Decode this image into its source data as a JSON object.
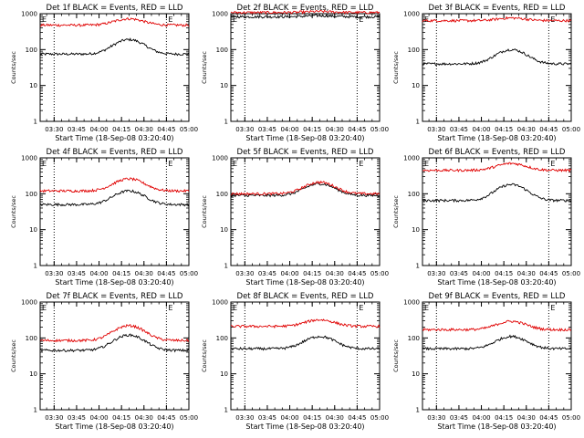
{
  "chart_data": [
    {
      "type": "line",
      "title": "Det 1f BLACK = Events, RED = LLD",
      "xlabel": "Start Time (18-Sep-08 03:20:40)",
      "ylabel": "Counts/sec",
      "y_scale": "log",
      "ylim": [
        1,
        1000
      ],
      "xlim": [
        "03:20:40",
        "05:00:00"
      ],
      "x_ticks": [
        "03:30",
        "03:45",
        "04:00",
        "04:15",
        "04:30",
        "04:45",
        "05:00"
      ],
      "y_ticks": [
        "1",
        "10",
        "100",
        "1000"
      ],
      "vlines": [
        "03:30",
        "04:45"
      ],
      "flags": [
        "E",
        "E"
      ],
      "series": [
        {
          "color": "black",
          "base": 75,
          "peak": 190
        },
        {
          "color": "red",
          "base": 480,
          "peak": 720
        }
      ]
    },
    {
      "type": "line",
      "title": "Det 2f BLACK = Events, RED = LLD",
      "xlabel": "Start Time (18-Sep-08 03:20:40)",
      "ylabel": "Counts/sec",
      "y_scale": "log",
      "ylim": [
        1,
        1000
      ],
      "xlim": [
        "03:20:40",
        "05:00:00"
      ],
      "x_ticks": [
        "03:30",
        "03:45",
        "04:00",
        "04:15",
        "04:30",
        "04:45",
        "05:00"
      ],
      "y_ticks": [
        "1",
        "10",
        "100",
        "1000"
      ],
      "vlines": [
        "03:30",
        "04:45"
      ],
      "flags": [
        "E",
        "E"
      ],
      "series": [
        {
          "color": "black",
          "base": 820,
          "peak": 880
        },
        {
          "color": "red",
          "base": 1080,
          "peak": 1150
        }
      ]
    },
    {
      "type": "line",
      "title": "Det 3f BLACK = Events, RED = LLD",
      "xlabel": "Start Time (18-Sep-08 03:20:40)",
      "ylabel": "Counts/sec",
      "y_scale": "log",
      "ylim": [
        1,
        1000
      ],
      "xlim": [
        "03:20:40",
        "05:00:00"
      ],
      "x_ticks": [
        "03:30",
        "03:45",
        "04:00",
        "04:15",
        "04:30",
        "04:45",
        "05:00"
      ],
      "y_ticks": [
        "1",
        "10",
        "100",
        "1000"
      ],
      "vlines": [
        "03:30",
        "04:45"
      ],
      "flags": [
        "E",
        "E"
      ],
      "series": [
        {
          "color": "black",
          "base": 40,
          "peak": 100
        },
        {
          "color": "red",
          "base": 640,
          "peak": 760
        }
      ]
    },
    {
      "type": "line",
      "title": "Det 4f BLACK = Events, RED = LLD",
      "xlabel": "Start Time (18-Sep-08 03:20:40)",
      "ylabel": "Counts/sec",
      "y_scale": "log",
      "ylim": [
        1,
        1000
      ],
      "xlim": [
        "03:20:40",
        "05:00:00"
      ],
      "x_ticks": [
        "03:30",
        "03:45",
        "04:00",
        "04:15",
        "04:30",
        "04:45",
        "05:00"
      ],
      "y_ticks": [
        "1",
        "10",
        "100",
        "1000"
      ],
      "vlines": [
        "03:30",
        "04:45"
      ],
      "flags": [
        "E",
        "E"
      ],
      "series": [
        {
          "color": "black",
          "base": 50,
          "peak": 120
        },
        {
          "color": "red",
          "base": 120,
          "peak": 260
        }
      ]
    },
    {
      "type": "line",
      "title": "Det 5f BLACK = Events, RED = LLD",
      "xlabel": "Start Time (18-Sep-08 03:20:40)",
      "ylabel": "Counts/sec",
      "y_scale": "log",
      "ylim": [
        1,
        1000
      ],
      "xlim": [
        "03:20:40",
        "05:00:00"
      ],
      "x_ticks": [
        "03:30",
        "03:45",
        "04:00",
        "04:15",
        "04:30",
        "04:45",
        "05:00"
      ],
      "y_ticks": [
        "1",
        "10",
        "100",
        "1000"
      ],
      "vlines": [
        "03:30",
        "04:45"
      ],
      "flags": [
        "E",
        "E"
      ],
      "series": [
        {
          "color": "black",
          "base": 90,
          "peak": 190
        },
        {
          "color": "red",
          "base": 100,
          "peak": 210
        }
      ]
    },
    {
      "type": "line",
      "title": "Det 6f BLACK = Events, RED = LLD",
      "xlabel": "Start Time (18-Sep-08 03:20:40)",
      "ylabel": "Counts/sec",
      "y_scale": "log",
      "ylim": [
        1,
        1000
      ],
      "xlim": [
        "03:20:40",
        "05:00:00"
      ],
      "x_ticks": [
        "03:30",
        "03:45",
        "04:00",
        "04:15",
        "04:30",
        "04:45",
        "05:00"
      ],
      "y_ticks": [
        "1",
        "10",
        "100",
        "1000"
      ],
      "vlines": [
        "03:30",
        "04:45"
      ],
      "flags": [
        "E",
        "E"
      ],
      "series": [
        {
          "color": "black",
          "base": 65,
          "peak": 180
        },
        {
          "color": "red",
          "base": 450,
          "peak": 700
        }
      ]
    },
    {
      "type": "line",
      "title": "Det 7f BLACK = Events, RED = LLD",
      "xlabel": "Start Time (18-Sep-08 03:20:40)",
      "ylabel": "Counts/sec",
      "y_scale": "log",
      "ylim": [
        1,
        1000
      ],
      "xlim": [
        "03:20:40",
        "05:00:00"
      ],
      "x_ticks": [
        "03:30",
        "03:45",
        "04:00",
        "04:15",
        "04:30",
        "04:45",
        "05:00"
      ],
      "y_ticks": [
        "1",
        "10",
        "100",
        "1000"
      ],
      "vlines": [
        "03:30",
        "04:45"
      ],
      "flags": [
        "E",
        "E"
      ],
      "series": [
        {
          "color": "black",
          "base": 45,
          "peak": 120
        },
        {
          "color": "red",
          "base": 85,
          "peak": 220
        }
      ]
    },
    {
      "type": "line",
      "title": "Det 8f BLACK = Events, RED = LLD",
      "xlabel": "Start Time (18-Sep-08 03:20:40)",
      "ylabel": "Counts/sec",
      "y_scale": "log",
      "ylim": [
        1,
        1000
      ],
      "xlim": [
        "03:20:40",
        "05:00:00"
      ],
      "x_ticks": [
        "03:30",
        "03:45",
        "04:00",
        "04:15",
        "04:30",
        "04:45",
        "05:00"
      ],
      "y_ticks": [
        "1",
        "10",
        "100",
        "1000"
      ],
      "vlines": [
        "03:30",
        "04:45"
      ],
      "flags": [
        "E",
        "E"
      ],
      "series": [
        {
          "color": "black",
          "base": 50,
          "peak": 110
        },
        {
          "color": "red",
          "base": 210,
          "peak": 320
        }
      ]
    },
    {
      "type": "line",
      "title": "Det 9f BLACK = Events, RED = LLD",
      "xlabel": "Start Time (18-Sep-08 03:20:40)",
      "ylabel": "Counts/sec",
      "y_scale": "log",
      "ylim": [
        1,
        1000
      ],
      "xlim": [
        "03:20:40",
        "05:00:00"
      ],
      "x_ticks": [
        "03:30",
        "03:45",
        "04:00",
        "04:15",
        "04:30",
        "04:45",
        "05:00"
      ],
      "y_ticks": [
        "1",
        "10",
        "100",
        "1000"
      ],
      "vlines": [
        "03:30",
        "04:45"
      ],
      "flags": [
        "E",
        "E"
      ],
      "series": [
        {
          "color": "black",
          "base": 50,
          "peak": 110
        },
        {
          "color": "red",
          "base": 170,
          "peak": 290
        }
      ]
    }
  ]
}
